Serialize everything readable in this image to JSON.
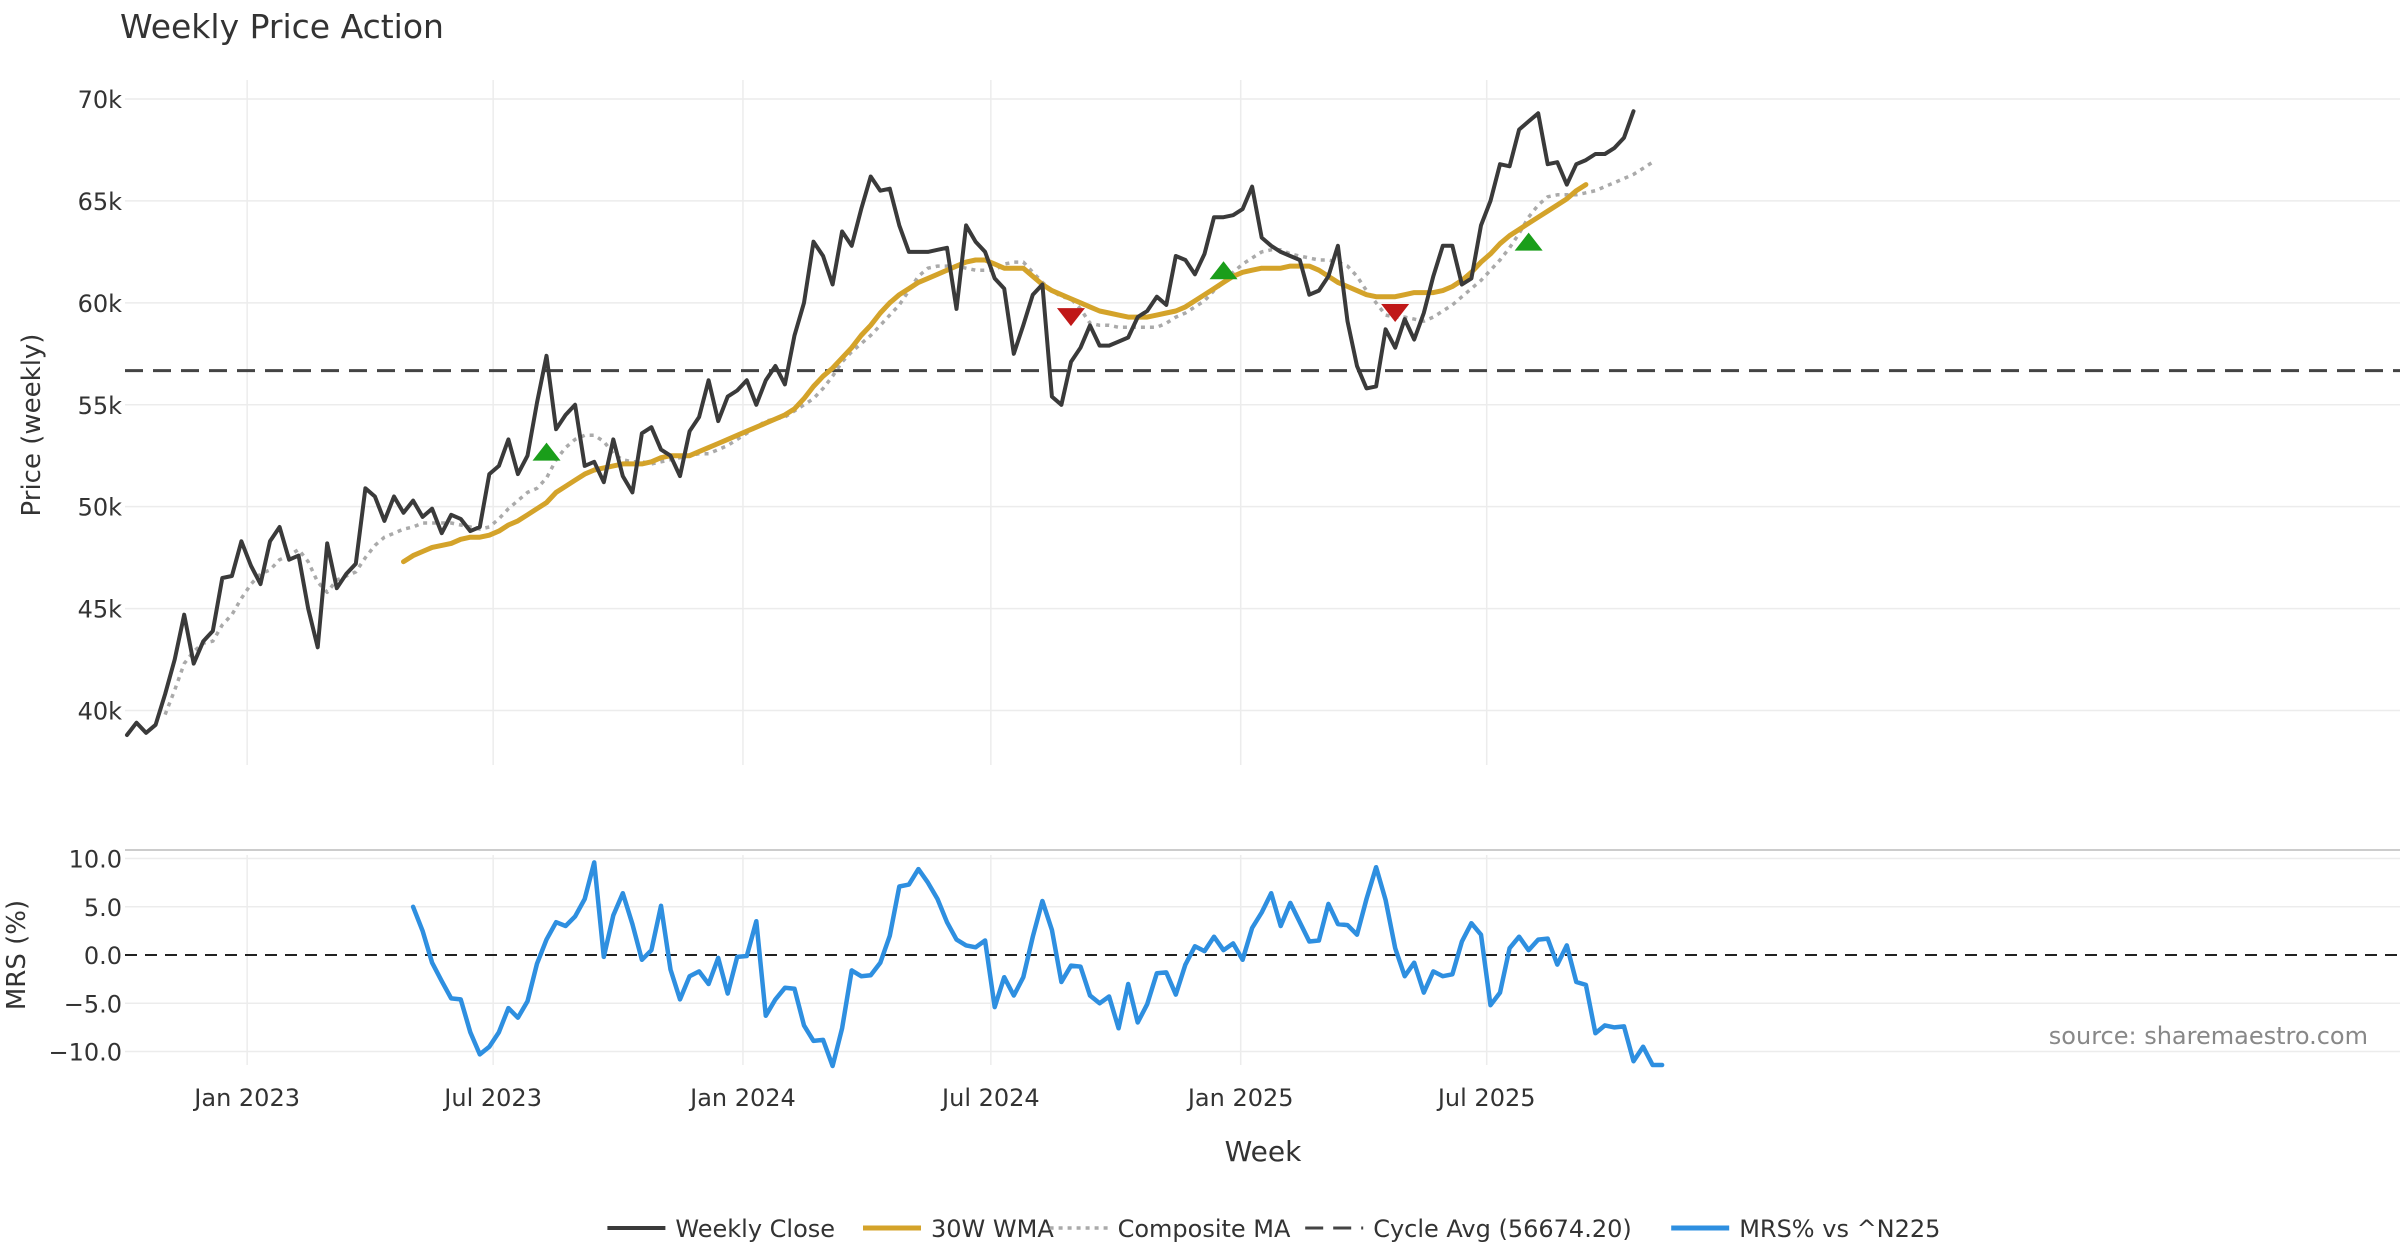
{
  "title": "Weekly Price Action",
  "source_note": "source: sharemaestro.com",
  "chart_data": [
    {
      "type": "line",
      "panel": "price",
      "ylabel": "Price (weekly)",
      "ylim": [
        38000,
        70500
      ],
      "yticks": [
        40000,
        45000,
        50000,
        55000,
        60000,
        65000,
        70000
      ],
      "ytick_labels": [
        "40k",
        "45k",
        "50k",
        "55k",
        "60k",
        "65k",
        "70k"
      ],
      "x_start": "2022-11-07",
      "x_step_weeks": 1,
      "series": [
        {
          "name": "Weekly Close",
          "color": "#3a3a3a",
          "start_index": 0,
          "values": [
            38800,
            39400,
            38900,
            39300,
            40800,
            42500,
            44700,
            42300,
            43400,
            43900,
            46500,
            46600,
            48300,
            47100,
            46200,
            48300,
            49000,
            47400,
            47600,
            45000,
            43100,
            48200,
            46000,
            46700,
            47200,
            50900,
            50500,
            49300,
            50500,
            49700,
            50300,
            49500,
            49900,
            48700,
            49600,
            49400,
            48800,
            49000,
            51600,
            52000,
            53300,
            51600,
            52500,
            55100,
            57400,
            53800,
            54500,
            55000,
            52000,
            52200,
            51200,
            53300,
            51500,
            50700,
            53600,
            53900,
            52800,
            52500,
            51500,
            53700,
            54400,
            56200,
            54200,
            55400,
            55700,
            56200,
            55000,
            56200,
            56900,
            56000,
            58400,
            60000,
            63000,
            62300,
            60900,
            63500,
            62800,
            64600,
            66200,
            65500,
            65600,
            63800,
            62500,
            62500,
            62500,
            62600,
            62700,
            59700,
            63800,
            63000,
            62500,
            61200,
            60700,
            57500,
            58900,
            60400,
            60900,
            55400,
            55000,
            57100,
            57800,
            58900,
            57900,
            57900,
            58100,
            58300,
            59300,
            59600,
            60300,
            59900,
            62300,
            62100,
            61400,
            62400,
            64200,
            64200,
            64300,
            64600,
            65700,
            63200,
            62800,
            62500,
            62300,
            62100,
            60400,
            60600,
            61300,
            62800,
            59100,
            56900,
            55800,
            55900,
            58700,
            57800,
            59200,
            58200,
            59500,
            61300,
            62800,
            62800,
            60900,
            61200,
            63800,
            65000,
            66800,
            66700,
            68500,
            68900,
            69300,
            66800,
            66900,
            65800,
            66800,
            67000,
            67300,
            67300,
            67600,
            68100,
            69400
          ]
        },
        {
          "name": "30W WMA",
          "color": "#d4a32a",
          "start_index": 29,
          "values": [
            47300,
            47600,
            47800,
            48000,
            48100,
            48200,
            48400,
            48500,
            48500,
            48600,
            48800,
            49100,
            49300,
            49600,
            49900,
            50200,
            50700,
            51000,
            51300,
            51600,
            51800,
            51900,
            52000,
            52100,
            52100,
            52100,
            52200,
            52400,
            52500,
            52500,
            52500,
            52700,
            52900,
            53100,
            53300,
            53500,
            53700,
            53900,
            54100,
            54300,
            54500,
            54800,
            55300,
            55900,
            56400,
            56800,
            57300,
            57800,
            58400,
            58900,
            59500,
            60000,
            60400,
            60700,
            61000,
            61200,
            61400,
            61600,
            61800,
            62000,
            62100,
            62100,
            61900,
            61700,
            61700,
            61700,
            61300,
            60900,
            60600,
            60400,
            60200,
            60000,
            59800,
            59600,
            59500,
            59400,
            59300,
            59300,
            59300,
            59400,
            59500,
            59600,
            59800,
            60100,
            60400,
            60700,
            61000,
            61300,
            61500,
            61600,
            61700,
            61700,
            61700,
            61800,
            61800,
            61800,
            61600,
            61300,
            61000,
            60800,
            60600,
            60400,
            60300,
            60300,
            60300,
            60400,
            60500,
            60500,
            60500,
            60600,
            60800,
            61100,
            61500,
            62000,
            62400,
            62900,
            63300,
            63600,
            63900,
            64200,
            64500,
            64800,
            65100,
            65500,
            65800
          ]
        },
        {
          "name": "Composite MA",
          "color": "#aaaaaa",
          "start_index": 4,
          "values": [
            39800,
            41000,
            42300,
            42900,
            43300,
            43400,
            44200,
            44700,
            45500,
            46200,
            46700,
            46900,
            47400,
            47600,
            47900,
            47300,
            46300,
            45800,
            46400,
            46600,
            46800,
            47500,
            48100,
            48500,
            48700,
            48900,
            49000,
            49200,
            49200,
            49200,
            49200,
            49100,
            49000,
            48900,
            49000,
            49400,
            49900,
            50300,
            50700,
            50900,
            51400,
            52300,
            52900,
            53300,
            53500,
            53500,
            53200,
            52600,
            52300,
            52200,
            52200,
            52100,
            52200,
            52300,
            52400,
            52500,
            52600,
            52600,
            52800,
            53000,
            53300,
            53600,
            53900,
            54200,
            54300,
            54400,
            54700,
            55000,
            55300,
            55800,
            56400,
            57100,
            57600,
            58000,
            58400,
            58900,
            59400,
            59900,
            60600,
            61300,
            61700,
            61800,
            61800,
            61800,
            61700,
            61600,
            61600,
            61600,
            61900,
            62000,
            62000,
            61500,
            61000,
            60600,
            60300,
            60200,
            59700,
            59000,
            58900,
            58900,
            58800,
            58800,
            58800,
            58800,
            58800,
            59000,
            59300,
            59500,
            59800,
            60100,
            60600,
            61000,
            61500,
            61900,
            62200,
            62500,
            62600,
            62600,
            62400,
            62300,
            62200,
            62100,
            62100,
            62000,
            61800,
            61300,
            60600,
            60000,
            59400,
            59300,
            59300,
            59200,
            59100,
            59300,
            59600,
            59900,
            60300,
            60700,
            61100,
            61600,
            62100,
            62700,
            63400,
            64200,
            64800,
            65200,
            65300,
            65300,
            65300,
            65400,
            65500,
            65700,
            65900,
            66100,
            66300,
            66600,
            66900
          ]
        }
      ],
      "reference_line": {
        "name": "Cycle Avg (56674.20)",
        "value": 56674.2,
        "color": "#444444"
      },
      "markers": [
        {
          "kind": "buy",
          "index": 44,
          "value": 52700,
          "color": "#1a9e1a"
        },
        {
          "kind": "sell",
          "index": 99,
          "value": 59300,
          "color": "#c01818"
        },
        {
          "kind": "buy",
          "index": 115,
          "value": 61600,
          "color": "#1a9e1a"
        },
        {
          "kind": "sell",
          "index": 133,
          "value": 59500,
          "color": "#c01818"
        },
        {
          "kind": "buy",
          "index": 147,
          "value": 63000,
          "color": "#1a9e1a"
        }
      ]
    },
    {
      "type": "line",
      "panel": "mrs",
      "ylabel": "MRS (%)",
      "ylim": [
        -11.5,
        11
      ],
      "yticks": [
        -10,
        -5,
        0,
        5,
        10
      ],
      "ytick_labels": [
        "−10.0",
        "−5.0",
        "0.0",
        "5.0",
        "10.0"
      ],
      "zero_line": 0,
      "series": [
        {
          "name": "MRS% vs ^N225",
          "color": "#2e8fe0",
          "start_index": 30,
          "values": [
            5.0,
            2.5,
            -0.8,
            -2.7,
            -4.5,
            -4.6,
            -8.0,
            -10.3,
            -9.5,
            -8.0,
            -5.5,
            -6.5,
            -4.8,
            -0.9,
            1.6,
            3.4,
            3.0,
            4.0,
            5.8,
            9.6,
            -0.2,
            4.1,
            6.4,
            3.2,
            -0.5,
            0.5,
            5.1,
            -1.5,
            -4.6,
            -2.2,
            -1.7,
            -3.0,
            -0.3,
            -4.0,
            -0.2,
            -0.1,
            3.5,
            -6.3,
            -4.6,
            -3.4,
            -3.5,
            -7.3,
            -8.9,
            -8.8,
            -11.5,
            -7.6,
            -1.6,
            -2.2,
            -2.1,
            -0.8,
            2.0,
            7.1,
            7.3,
            8.9,
            7.5,
            5.8,
            3.4,
            1.6,
            1.0,
            0.8,
            1.5,
            -5.4,
            -2.3,
            -4.2,
            -2.3,
            1.9,
            5.6,
            2.6,
            -2.8,
            -1.1,
            -1.2,
            -4.2,
            -5.0,
            -4.3,
            -7.6,
            -3.0,
            -7.0,
            -5.1,
            -1.9,
            -1.8,
            -4.1,
            -1.0,
            0.9,
            0.4,
            1.9,
            0.5,
            1.2,
            -0.5,
            2.8,
            4.4,
            6.4,
            3.0,
            5.4,
            3.4,
            1.4,
            1.5,
            5.3,
            3.2,
            3.1,
            2.1,
            5.8,
            9.1,
            5.7,
            0.7,
            -2.2,
            -0.8,
            -3.9,
            -1.7,
            -2.2,
            -2.0,
            1.4,
            3.3,
            2.1,
            -5.2,
            -3.9,
            0.7,
            1.9,
            0.5,
            1.6,
            1.7,
            -1.0,
            1.0,
            -2.8,
            -3.1,
            -8.1,
            -7.3,
            -7.5,
            -7.4,
            -11.0,
            -9.5,
            -11.4,
            -11.4
          ]
        }
      ]
    }
  ],
  "x_axis": {
    "label": "Week",
    "ticks": [
      {
        "label": "Jan 2023",
        "index": 12.6
      },
      {
        "label": "Jul 2023",
        "index": 38.4
      },
      {
        "label": "Jan 2024",
        "index": 64.6
      },
      {
        "label": "Jul 2024",
        "index": 90.6
      },
      {
        "label": "Jan 2025",
        "index": 116.8
      },
      {
        "label": "Jul 2025",
        "index": 142.6
      }
    ]
  },
  "legend": [
    {
      "label": "Weekly Close",
      "style": "solid",
      "color": "#3a3a3a"
    },
    {
      "label": "30W WMA",
      "style": "solid-thick",
      "color": "#d4a32a"
    },
    {
      "label": "Composite MA",
      "style": "dotted",
      "color": "#aaaaaa"
    },
    {
      "label": "Cycle Avg (56674.20)",
      "style": "dashed",
      "color": "#444444"
    },
    {
      "label": "MRS% vs ^N225",
      "style": "solid-thick",
      "color": "#2e8fe0"
    }
  ]
}
